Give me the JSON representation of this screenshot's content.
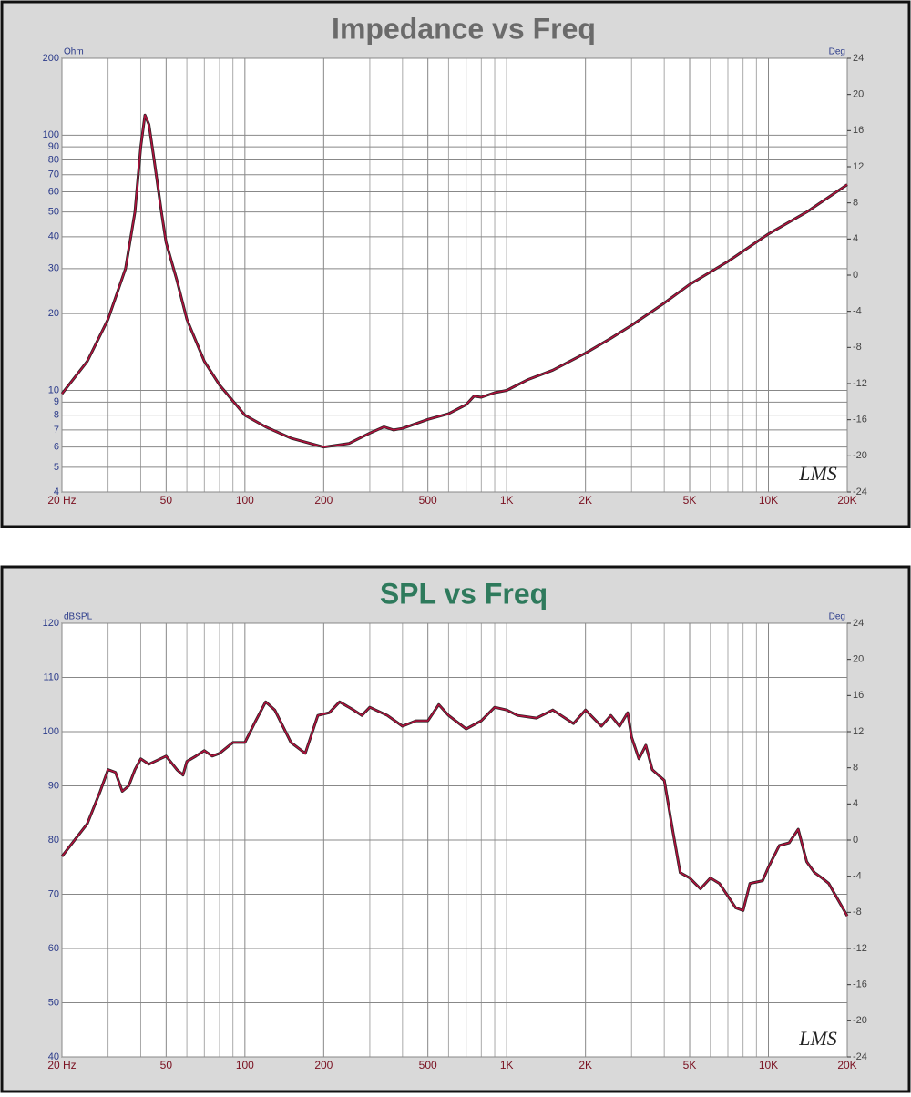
{
  "chart_data": [
    {
      "type": "line",
      "title": "Impedance vs Freq",
      "title_color": "#6a6a6a",
      "ylabel": "Ohm",
      "y2label": "Deg",
      "watermark": "LMS",
      "xlog": true,
      "ylog": true,
      "grid": true,
      "xlim": [
        20,
        20000
      ],
      "ylim": [
        4,
        200
      ],
      "y2lim": [
        -24,
        24
      ],
      "xticks": [
        {
          "value": 20,
          "label": "20 Hz"
        },
        50,
        100,
        200,
        500,
        {
          "value": 1000,
          "label": "1K"
        },
        {
          "value": 2000,
          "label": "2K"
        },
        {
          "value": 5000,
          "label": "5K"
        },
        {
          "value": 10000,
          "label": "10K"
        },
        {
          "value": 20000,
          "label": "20K"
        }
      ],
      "xgrid": [
        30,
        40,
        60,
        70,
        80,
        90,
        300,
        400,
        600,
        700,
        800,
        900,
        3000,
        4000,
        6000,
        7000,
        8000,
        9000
      ],
      "yticks": [
        4,
        5,
        6,
        7,
        8,
        9,
        10,
        20,
        30,
        40,
        50,
        60,
        70,
        80,
        90,
        100,
        200
      ],
      "y2ticks": [
        -24,
        -20,
        -16,
        -12,
        -8,
        -4,
        0,
        4,
        8,
        12,
        16,
        20,
        24
      ],
      "series": [
        {
          "name": "Impedance",
          "color": "#b0103c",
          "x": [
            20,
            25,
            30,
            35,
            38,
            40,
            41.5,
            43,
            45,
            48,
            50,
            55,
            60,
            70,
            80,
            100,
            120,
            150,
            200,
            250,
            300,
            340,
            370,
            400,
            500,
            600,
            700,
            750,
            800,
            900,
            1000,
            1200,
            1500,
            2000,
            2500,
            3000,
            4000,
            5000,
            7000,
            10000,
            14000,
            20000
          ],
          "values": [
            9.7,
            13,
            19,
            30,
            50,
            90,
            120,
            110,
            80,
            50,
            38,
            27,
            19,
            13,
            10.5,
            8,
            7.2,
            6.5,
            6.0,
            6.2,
            6.8,
            7.2,
            7.0,
            7.1,
            7.7,
            8.1,
            8.8,
            9.5,
            9.4,
            9.8,
            10,
            11,
            12,
            14,
            16,
            18,
            22,
            26,
            32,
            41,
            50,
            64
          ]
        }
      ]
    },
    {
      "type": "line",
      "title": "SPL vs Freq",
      "title_color": "#2e7a5c",
      "ylabel": "dBSPL",
      "y2label": "Deg",
      "watermark": "LMS",
      "xlog": true,
      "ylog": false,
      "grid": true,
      "xlim": [
        20,
        20000
      ],
      "ylim": [
        40,
        120
      ],
      "y2lim": [
        -24,
        24
      ],
      "xticks": [
        {
          "value": 20,
          "label": "20 Hz"
        },
        50,
        100,
        200,
        500,
        {
          "value": 1000,
          "label": "1K"
        },
        {
          "value": 2000,
          "label": "2K"
        },
        {
          "value": 5000,
          "label": "5K"
        },
        {
          "value": 10000,
          "label": "10K"
        },
        {
          "value": 20000,
          "label": "20K"
        }
      ],
      "xgrid": [
        30,
        40,
        60,
        70,
        80,
        90,
        300,
        400,
        600,
        700,
        800,
        900,
        3000,
        4000,
        6000,
        7000,
        8000,
        9000
      ],
      "yticks": [
        40,
        50,
        60,
        70,
        80,
        90,
        100,
        110,
        120
      ],
      "y2ticks": [
        -24,
        -20,
        -16,
        -12,
        -8,
        -4,
        0,
        4,
        8,
        12,
        16,
        20,
        24
      ],
      "series": [
        {
          "name": "SPL",
          "color": "#b0103c",
          "x": [
            20,
            25,
            28,
            30,
            32,
            34,
            36,
            38,
            40,
            43,
            50,
            55,
            58,
            60,
            65,
            70,
            75,
            80,
            90,
            100,
            110,
            120,
            130,
            150,
            170,
            190,
            210,
            230,
            260,
            280,
            300,
            350,
            400,
            450,
            500,
            550,
            600,
            700,
            800,
            900,
            1000,
            1100,
            1300,
            1500,
            1800,
            2000,
            2300,
            2500,
            2700,
            2900,
            3000,
            3200,
            3400,
            3600,
            4000,
            4300,
            4600,
            5000,
            5500,
            6000,
            6500,
            7500,
            8000,
            8500,
            9500,
            10000,
            11000,
            12000,
            13000,
            14000,
            15000,
            16000,
            17000,
            20000
          ],
          "values": [
            77,
            83,
            89,
            93,
            92.5,
            89,
            90,
            93,
            95,
            94,
            95.5,
            93,
            92,
            94.5,
            95.5,
            96.5,
            95.5,
            96,
            98,
            98,
            102,
            105.5,
            104,
            98,
            96,
            103,
            103.5,
            105.5,
            104,
            103,
            104.5,
            103,
            101,
            102,
            102,
            105,
            103,
            100.5,
            102,
            104.5,
            104,
            103,
            102.5,
            104,
            101.5,
            104,
            101,
            103,
            101,
            103.5,
            99,
            95,
            97.5,
            93,
            91,
            82,
            74,
            73,
            71,
            73,
            72,
            67.5,
            67,
            72,
            72.5,
            75,
            79,
            79.5,
            82,
            76,
            74,
            73,
            72,
            66
          ]
        }
      ]
    }
  ]
}
